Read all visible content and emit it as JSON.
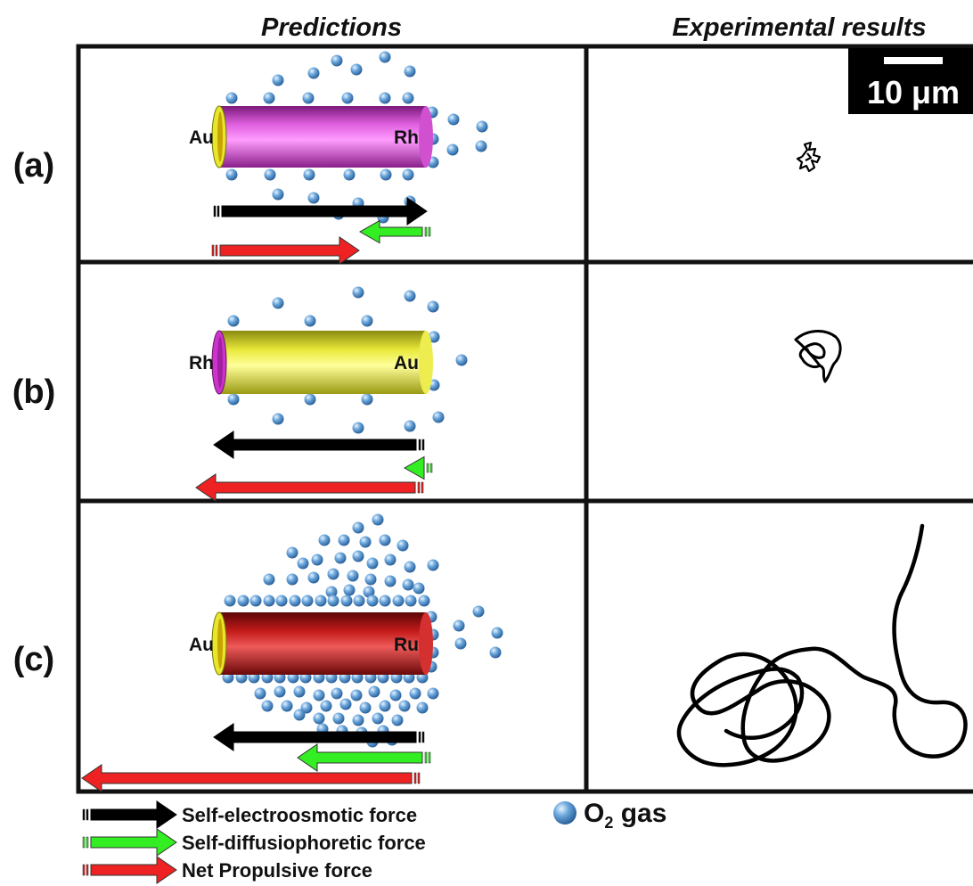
{
  "headers": {
    "predictions": "Predictions",
    "experimental": "Experimental results"
  },
  "scale_bar": {
    "label": "10 μm"
  },
  "panels": [
    {
      "label": "(a)",
      "left_metal": "Au",
      "right_metal": "Rh",
      "rod_color": "#cc33cc",
      "end_cap": "Au",
      "gas_level": "moderate",
      "trajectory": "small jitter"
    },
    {
      "label": "(b)",
      "left_metal": "Rh",
      "right_metal": "Au",
      "rod_color": "#e6e62e",
      "end_cap": "Rh",
      "gas_level": "low",
      "trajectory": "small loop"
    },
    {
      "label": "(c)",
      "left_metal": "Au",
      "right_metal": "Ru",
      "rod_color": "#c41a1a",
      "end_cap": "Au",
      "gas_level": "high",
      "trajectory": "long path"
    }
  ],
  "legend": {
    "electroosmotic": "Self-electroosmotic force",
    "diffusiophoretic": "Self-diffusiophoretic force",
    "net": "Net Propulsive force",
    "gas_prefix": "O",
    "gas_sub": "2",
    "gas_suffix": " gas"
  },
  "colors": {
    "electroosmotic": "#000000",
    "diffusiophoretic": "#33ee22",
    "net": "#ee2222",
    "o2_bubble": "#4a8fd0",
    "gold": "#e6e62e",
    "rhodium": "#cc33cc",
    "ruthenium": "#c41a1a"
  }
}
